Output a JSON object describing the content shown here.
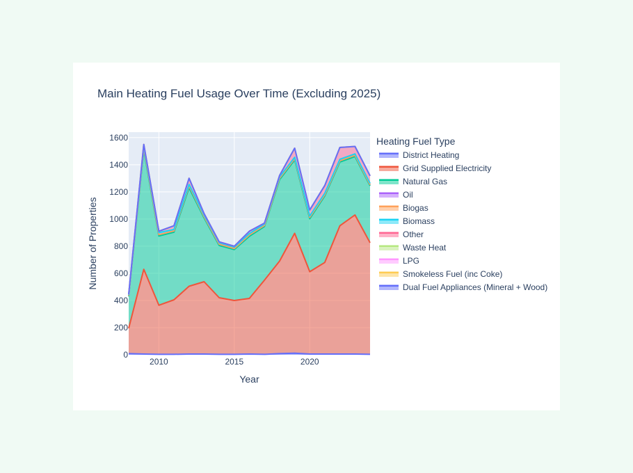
{
  "chart_data": {
    "type": "area",
    "stacked": true,
    "title": "Main Heating Fuel Usage Over Time (Excluding 2025)",
    "xlabel": "Year",
    "ylabel": "Number of Properties",
    "legend_title": "Heating Fuel Type",
    "legend_position": "right",
    "grid": true,
    "xlim": [
      2008,
      2024
    ],
    "ylim": [
      0,
      1640
    ],
    "xticks": [
      2010,
      2015,
      2020
    ],
    "yticks": [
      0,
      200,
      400,
      600,
      800,
      1000,
      1200,
      1400,
      1600
    ],
    "x": [
      2008,
      2009,
      2010,
      2011,
      2012,
      2013,
      2014,
      2015,
      2016,
      2017,
      2018,
      2019,
      2020,
      2021,
      2022,
      2023,
      2024
    ],
    "series": [
      {
        "name": "District Heating",
        "color": "#636efa",
        "values": [
          8,
          5,
          3,
          3,
          5,
          5,
          3,
          3,
          5,
          3,
          8,
          12,
          5,
          5,
          5,
          5,
          3
        ]
      },
      {
        "name": "Grid Supplied Electricity",
        "color": "#ef553b",
        "values": [
          187,
          625,
          362,
          402,
          500,
          533,
          417,
          397,
          410,
          547,
          682,
          883,
          607,
          675,
          945,
          1025,
          822
        ]
      },
      {
        "name": "Natural Gas",
        "color": "#00cc96",
        "values": [
          235,
          880,
          510,
          498,
          725,
          470,
          385,
          375,
          458,
          395,
          600,
          540,
          390,
          490,
          470,
          430,
          420
        ]
      },
      {
        "name": "Oil",
        "color": "#ab63fa",
        "values": [
          5,
          15,
          10,
          10,
          15,
          10,
          10,
          8,
          10,
          8,
          10,
          10,
          10,
          10,
          10,
          10,
          8
        ]
      },
      {
        "name": "Biogas",
        "color": "#ffa15a",
        "values": [
          0,
          0,
          0,
          0,
          0,
          0,
          0,
          0,
          0,
          0,
          0,
          0,
          0,
          0,
          0,
          0,
          0
        ]
      },
      {
        "name": "Biomass",
        "color": "#19d3f3",
        "values": [
          5,
          10,
          15,
          10,
          10,
          10,
          10,
          10,
          10,
          10,
          10,
          10,
          10,
          10,
          10,
          10,
          10
        ]
      },
      {
        "name": "Other",
        "color": "#ff6692",
        "values": [
          5,
          15,
          10,
          27,
          45,
          12,
          7,
          7,
          17,
          7,
          10,
          67,
          45,
          57,
          87,
          55,
          55
        ]
      },
      {
        "name": "Waste Heat",
        "color": "#b6e880",
        "values": [
          0,
          0,
          0,
          0,
          0,
          0,
          0,
          0,
          0,
          0,
          0,
          0,
          0,
          0,
          0,
          0,
          0
        ]
      },
      {
        "name": "LPG",
        "color": "#ff97ff",
        "values": [
          0,
          0,
          0,
          0,
          0,
          0,
          0,
          0,
          0,
          0,
          0,
          0,
          0,
          0,
          0,
          0,
          0
        ]
      },
      {
        "name": "Smokeless Fuel (inc Coke)",
        "color": "#fecb52",
        "values": [
          0,
          0,
          0,
          0,
          0,
          0,
          0,
          0,
          0,
          0,
          0,
          0,
          0,
          0,
          0,
          0,
          0
        ]
      },
      {
        "name": "Dual Fuel Appliances (Mineral + Wood)",
        "color": "#636efa",
        "values": [
          0,
          0,
          0,
          0,
          0,
          0,
          0,
          0,
          0,
          0,
          0,
          0,
          0,
          0,
          0,
          0,
          0
        ]
      }
    ]
  }
}
